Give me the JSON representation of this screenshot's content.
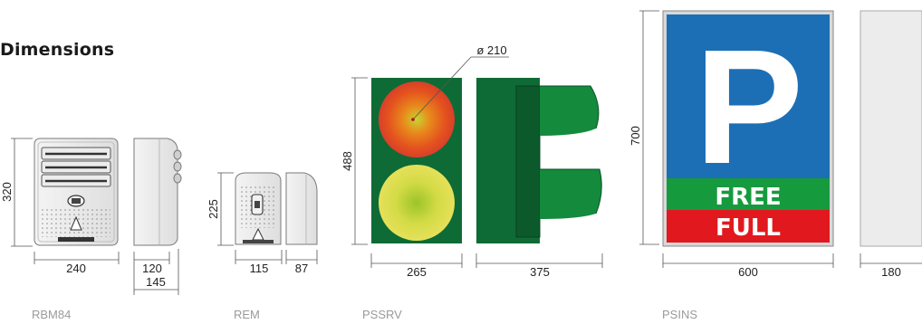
{
  "title": "Dimensions",
  "models": [
    {
      "id": "rbm84",
      "name": "RBM84"
    },
    {
      "id": "rem",
      "name": "REM"
    },
    {
      "id": "pssrv",
      "name": "PSSRV"
    },
    {
      "id": "psins",
      "name": "PSINS"
    }
  ],
  "dimensions": {
    "rbm84_height": "320",
    "rbm84_width": "240",
    "rbm84_depth": "120",
    "rbm84_depth_total": "145",
    "rem_height": "225",
    "rem_width": "115",
    "rem_depth": "87",
    "pssrv_diameter": "ø 210",
    "pssrv_height": "488",
    "pssrv_width": "265",
    "pssrv_depth": "375",
    "psins_height": "700",
    "psins_width": "600",
    "psins_depth": "180"
  },
  "sign": {
    "letter": "P",
    "free_label": "FREE",
    "full_label": "FULL"
  },
  "colors": {
    "sign_blue": "#1c6fb5",
    "free_green": "#169a3e",
    "full_red": "#e1191f",
    "housing_green": "#0f6b35",
    "lamp_red": "#e8531f",
    "lamp_yellow": "#c9d640"
  }
}
